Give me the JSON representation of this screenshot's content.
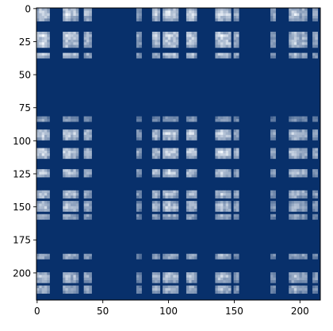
{
  "chart_data": {
    "type": "heatmap",
    "title": "",
    "xlabel": "",
    "ylabel": "",
    "colormap": "Blues_r",
    "colors": {
      "low": "#08306b",
      "high": "#f7fbff",
      "frame": "#000000",
      "background": "#ffffff"
    },
    "grid": false,
    "extent_x": [
      -0.5,
      215.5
    ],
    "extent_y": [
      -0.5,
      220.5
    ],
    "x_ticks": [
      0,
      50,
      100,
      150,
      200
    ],
    "x_tick_labels": [
      "0",
      "50",
      "100",
      "150",
      "200"
    ],
    "y_ticks": [
      0,
      25,
      50,
      75,
      100,
      125,
      150,
      175,
      200
    ],
    "y_tick_labels": [
      "0",
      "25",
      "50",
      "75",
      "100",
      "125",
      "150",
      "175",
      "200"
    ],
    "bright_rows": [
      {
        "y": 4,
        "thickness": 5,
        "strength": 1.0
      },
      {
        "y": 21,
        "thickness": 4,
        "strength": 0.95
      },
      {
        "y": 26,
        "thickness": 4,
        "strength": 0.9
      },
      {
        "y": 35,
        "thickness": 2,
        "strength": 0.8
      },
      {
        "y": 84,
        "thickness": 2,
        "strength": 0.45
      },
      {
        "y": 95,
        "thickness": 4,
        "strength": 0.95
      },
      {
        "y": 109,
        "thickness": 4,
        "strength": 1.0
      },
      {
        "y": 124,
        "thickness": 3,
        "strength": 0.9
      },
      {
        "y": 140,
        "thickness": 3,
        "strength": 0.8
      },
      {
        "y": 150,
        "thickness": 4,
        "strength": 0.85
      },
      {
        "y": 157,
        "thickness": 2,
        "strength": 0.6
      },
      {
        "y": 187,
        "thickness": 2,
        "strength": 0.6
      },
      {
        "y": 203,
        "thickness": 4,
        "strength": 0.8
      },
      {
        "y": 212,
        "thickness": 3,
        "strength": 0.7
      }
    ],
    "bright_cols": [
      {
        "x": 4,
        "thickness": 5,
        "strength": 1.0
      },
      {
        "x": 23,
        "thickness": 4,
        "strength": 0.95
      },
      {
        "x": 28,
        "thickness": 3,
        "strength": 0.8
      },
      {
        "x": 38,
        "thickness": 3,
        "strength": 0.75
      },
      {
        "x": 77,
        "thickness": 2,
        "strength": 0.45
      },
      {
        "x": 90,
        "thickness": 3,
        "strength": 0.8
      },
      {
        "x": 100,
        "thickness": 4,
        "strength": 1.0
      },
      {
        "x": 104,
        "thickness": 3,
        "strength": 0.9
      },
      {
        "x": 117,
        "thickness": 4,
        "strength": 0.95
      },
      {
        "x": 140,
        "thickness": 4,
        "strength": 1.0
      },
      {
        "x": 145,
        "thickness": 3,
        "strength": 0.85
      },
      {
        "x": 152,
        "thickness": 2,
        "strength": 0.6
      },
      {
        "x": 180,
        "thickness": 2,
        "strength": 0.5
      },
      {
        "x": 196,
        "thickness": 4,
        "strength": 0.9
      },
      {
        "x": 203,
        "thickness": 3,
        "strength": 0.7
      },
      {
        "x": 212,
        "thickness": 2,
        "strength": 0.55
      }
    ]
  }
}
